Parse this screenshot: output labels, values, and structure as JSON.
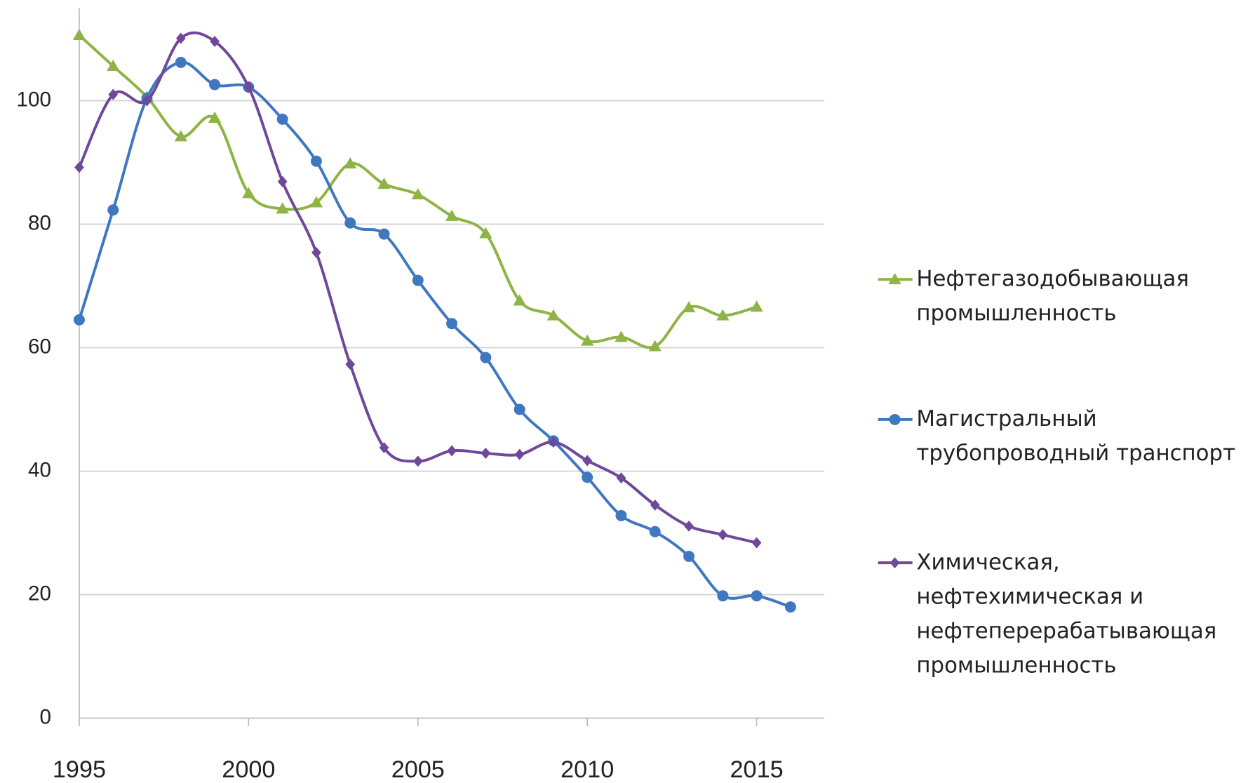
{
  "chart_data": {
    "type": "line",
    "x": [
      1995,
      1996,
      1997,
      1998,
      1999,
      2000,
      2001,
      2002,
      2003,
      2004,
      2005,
      2006,
      2007,
      2008,
      2009,
      2010,
      2011,
      2012,
      2013,
      2014,
      2015,
      2016
    ],
    "xlim": [
      1995,
      2017
    ],
    "xticks": [
      1995,
      2000,
      2005,
      2010,
      2015
    ],
    "ylim": [
      0,
      115
    ],
    "yticks": [
      0,
      20,
      40,
      60,
      80,
      100
    ],
    "grid": true,
    "legend": "right",
    "series": [
      {
        "name": "Нефтегазодобывающая\nпромышленность",
        "color": "#8db444",
        "marker": "triangle",
        "values": [
          110.6,
          105.6,
          100.6,
          94.2,
          97.2,
          85.0,
          82.5,
          83.5,
          89.8,
          86.5,
          84.8,
          81.3,
          78.5,
          67.6,
          65.2,
          61.1,
          61.7,
          60.2,
          66.5,
          65.2,
          66.6,
          null
        ]
      },
      {
        "name": "Магистральный\nтрубопроводный транспорт",
        "color": "#3f78c0",
        "marker": "circle",
        "values": [
          64.5,
          82.3,
          100.4,
          106.2,
          102.6,
          102.2,
          97.0,
          90.2,
          80.2,
          78.4,
          70.9,
          63.9,
          58.4,
          50.0,
          44.9,
          39.0,
          32.8,
          30.2,
          26.2,
          19.8,
          19.8,
          18.0
        ]
      },
      {
        "name": "Химическая,\nнефтехимическая и\nнефтеперерабатывающая\nпромышленность",
        "color": "#70489a",
        "marker": "diamond",
        "values": [
          89.2,
          101.0,
          100.0,
          110.1,
          109.6,
          102.2,
          86.9,
          75.4,
          57.3,
          43.8,
          41.6,
          43.3,
          42.9,
          42.7,
          44.7,
          41.7,
          38.9,
          34.5,
          31.1,
          29.7,
          28.4,
          null
        ]
      }
    ]
  }
}
